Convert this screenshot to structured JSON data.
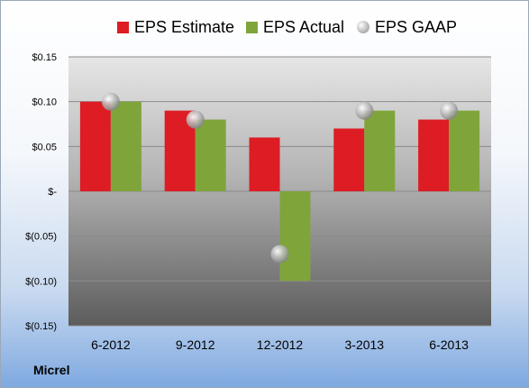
{
  "company": "Micrel",
  "colors": {
    "estimate": "#dd1c24",
    "actual": "#7fa53a",
    "gaap": "#a9a9a9"
  },
  "legend": {
    "estimate": "EPS Estimate",
    "actual": "EPS Actual",
    "gaap": "EPS GAAP"
  },
  "chart_data": {
    "type": "bar",
    "categories": [
      "6-2012",
      "9-2012",
      "12-2012",
      "3-2013",
      "6-2013"
    ],
    "series": [
      {
        "name": "EPS Estimate",
        "values": [
          0.1,
          0.09,
          0.06,
          0.07,
          0.08
        ]
      },
      {
        "name": "EPS Actual",
        "values": [
          0.1,
          0.08,
          -0.1,
          0.09,
          0.09
        ]
      },
      {
        "name": "EPS GAAP",
        "values": [
          0.1,
          0.08,
          -0.07,
          0.09,
          0.09
        ]
      }
    ],
    "ylim": [
      -0.15,
      0.15
    ],
    "yticks": [
      0.15,
      0.1,
      0.05,
      0,
      -0.05,
      -0.1,
      -0.15
    ],
    "ytick_labels": [
      "$0.15",
      "$0.10",
      "$0.05",
      "$-",
      "$(0.05)",
      "$(0.10)",
      "$(0.15)"
    ],
    "grid": true,
    "legend_position": "top"
  }
}
